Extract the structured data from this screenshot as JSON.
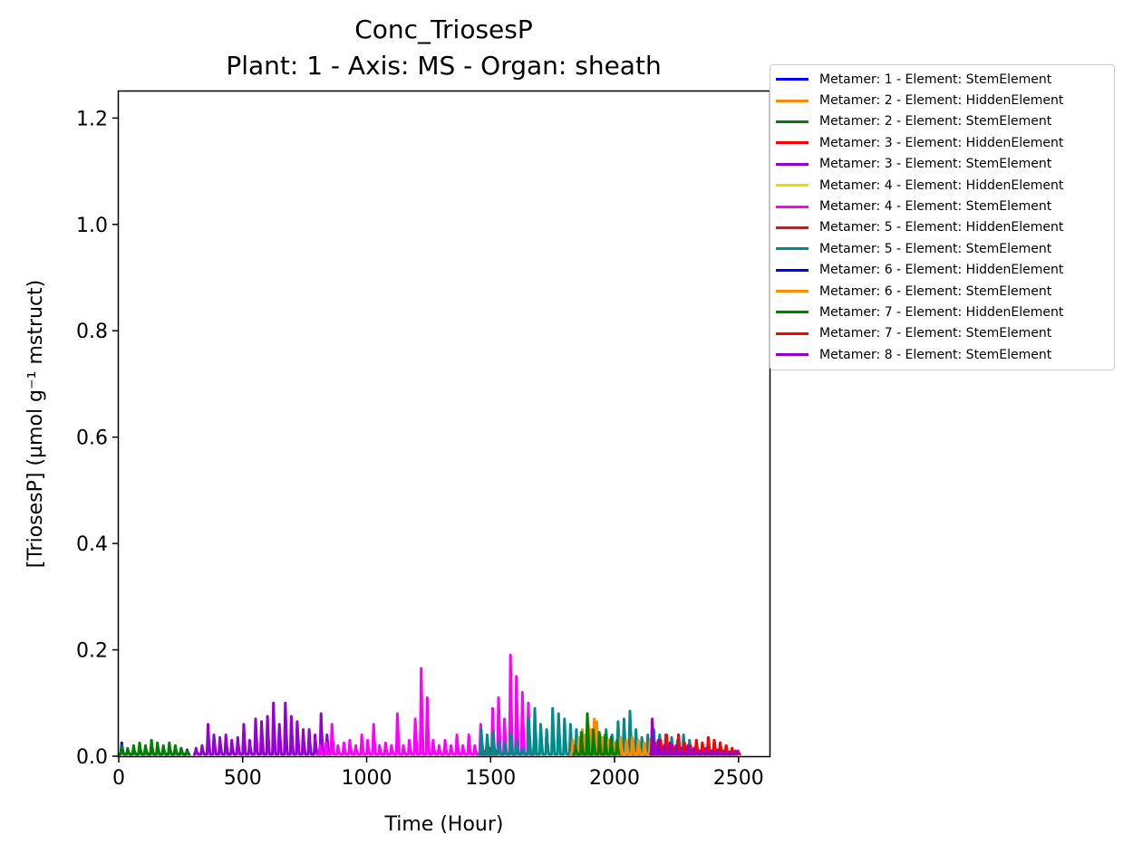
{
  "chart_data": {
    "type": "line",
    "title": "Conc_TriosesP",
    "subtitle": "Plant: 1 - Axis: MS - Organ: sheath",
    "xlabel": "Time (Hour)",
    "ylabel": "[TriosesP] (µmol g⁻¹ mstruct)",
    "xlim": [
      0,
      2625
    ],
    "ylim": [
      0,
      1.25
    ],
    "xticks": [
      "0",
      "500",
      "1000",
      "1500",
      "2000",
      "2500"
    ],
    "xtick_values": [
      0,
      500,
      1000,
      1500,
      2000,
      2500
    ],
    "yticks": [
      "0.0",
      "0.2",
      "0.4",
      "0.6",
      "0.8",
      "1.0",
      "1.2"
    ],
    "ytick_values": [
      0,
      0.2,
      0.4,
      0.6,
      0.8,
      1.0,
      1.2
    ],
    "legend_position": "outside-top-right",
    "series": [
      {
        "name": "Metamer: 1 - Element: StemElement",
        "color": "#0000ff",
        "start": 0,
        "peaks": [
          0.025,
          0.01,
          0.015,
          0.02,
          0.018,
          0.02,
          0.018,
          0.015,
          0.02,
          0.018,
          0.015,
          0.012
        ]
      },
      {
        "name": "Metamer: 2 - Element: HiddenElement",
        "color": "#ff8c00",
        "start": 1810,
        "peaks": [
          0.02,
          0.035,
          0.05,
          0.06,
          0.07,
          0.04,
          0.035,
          0.03,
          0.04,
          0.035,
          0.04,
          0.035,
          0.03,
          0.03
        ]
      },
      {
        "name": "Metamer: 2 - Element: StemElement",
        "color": "#008000",
        "start": 0,
        "peaks": [
          0.02,
          0.015,
          0.02,
          0.025,
          0.02,
          0.03,
          0.025,
          0.02,
          0.025,
          0.02,
          0.015,
          0.01
        ]
      },
      {
        "name": "Metamer: 3 - Element: HiddenElement",
        "color": "#ff0000",
        "start": 2150,
        "peaks": [
          0.02,
          0.03,
          0.035,
          0.02,
          0.04,
          0.025,
          0.02,
          0.03,
          0.025,
          0.035,
          0.03,
          0.025,
          0.02,
          0.015
        ]
      },
      {
        "name": "Metamer: 3 - Element: StemElement",
        "color": "#9400d3",
        "start": 300,
        "peaks": [
          0.015,
          0.02,
          0.06,
          0.04,
          0.035,
          0.04,
          0.03,
          0.035,
          0.06,
          0.03,
          0.07,
          0.065,
          0.075,
          0.1,
          0.06,
          0.1,
          0.075,
          0.065,
          0.05,
          0.05,
          0.04,
          0.08,
          0.04
        ]
      },
      {
        "name": "Metamer: 4 - Element: HiddenElement",
        "color": "#ffd700",
        "start": 1820,
        "peaks": [
          0.01,
          0.02,
          0.015
        ]
      },
      {
        "name": "Metamer: 4 - Element: StemElement",
        "color": "#ff00ff",
        "start": 800,
        "peaks": [
          0.02,
          0.025,
          0.06,
          0.02,
          0.025,
          0.03,
          0.02,
          0.04,
          0.03,
          0.06,
          0.02,
          0.025,
          0.02,
          0.08,
          0.02,
          0.03,
          0.07,
          0.165,
          0.11,
          0.03,
          0.02,
          0.03,
          0.02,
          0.04,
          0.02,
          0.04,
          0.02,
          0.06,
          0.02,
          0.09,
          0.11,
          0.07,
          0.19,
          0.15,
          0.12,
          0.1,
          0.03
        ]
      },
      {
        "name": "Metamer: 5 - Element: HiddenElement",
        "color": "#a52a2a",
        "start": 1460,
        "peaks": [
          0.01,
          0.015,
          0.01
        ]
      },
      {
        "name": "Metamer: 5 - Element: StemElement",
        "color": "#008b8b",
        "start": 1450,
        "peaks": [
          0.05,
          0.04,
          0.045,
          0.03,
          0.025,
          0.04,
          0.03,
          0.015,
          0.07,
          0.09,
          0.06,
          0.05,
          0.09,
          0.08,
          0.07,
          0.06,
          0.05,
          0.04,
          0.03,
          0.02,
          0.035,
          0.05,
          0.04,
          0.065,
          0.07,
          0.085,
          0.05,
          0.035,
          0.04,
          0.05,
          0.04,
          0.04,
          0.035,
          0.03,
          0.04,
          0.03
        ]
      },
      {
        "name": "Metamer: 6 - Element: HiddenElement",
        "color": "#0000ff",
        "start": 1825,
        "peaks": [
          0.01,
          0.015,
          0.012
        ]
      },
      {
        "name": "Metamer: 6 - Element: StemElement",
        "color": "#ff8c00",
        "start": 1820,
        "peaks": [
          0.03,
          0.035,
          0.04,
          0.05,
          0.065,
          0.035,
          0.03,
          0.025,
          0.035,
          0.03,
          0.035,
          0.03,
          0.025,
          0.03,
          0.025
        ]
      },
      {
        "name": "Metamer: 7 - Element: HiddenElement",
        "color": "#008000",
        "start": 1830,
        "peaks": [
          0.02,
          0.045,
          0.08,
          0.05,
          0.045,
          0.04,
          0.035,
          0.03
        ]
      },
      {
        "name": "Metamer: 7 - Element: StemElement",
        "color": "#ff0000",
        "start": 2150,
        "peaks": [
          0.025,
          0.03,
          0.04,
          0.02,
          0.04,
          0.025,
          0.02,
          0.03,
          0.025,
          0.035,
          0.03,
          0.025,
          0.02,
          0.015,
          0.01
        ]
      },
      {
        "name": "Metamer: 8 - Element: StemElement",
        "color": "#9400d3",
        "start": 2140,
        "peaks": [
          0.07,
          0.03,
          0.02,
          0.025,
          0.02,
          0.015,
          0.02,
          0.015,
          0.01,
          0.015,
          0.01,
          0.012,
          0.01,
          0.008,
          0.01
        ]
      }
    ]
  }
}
